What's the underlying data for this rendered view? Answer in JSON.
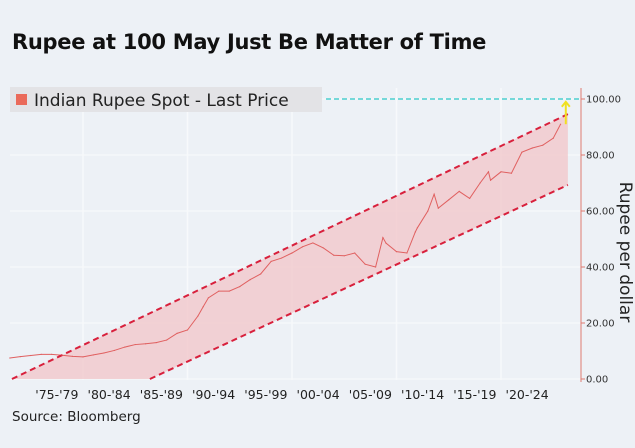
{
  "title": "Rupee at 100 May Just Be Matter of Time",
  "source": "Source: Bloomberg",
  "chart_data": {
    "type": "line",
    "title": "Rupee at 100 May Just Be Matter of Time",
    "legend": {
      "position": "top-left",
      "entries": [
        "Indian Rupee Spot - Last Price"
      ]
    },
    "ylabel": "Rupee per dollar",
    "ylim": [
      0,
      100
    ],
    "yaxis_side": "right",
    "yticks": [
      "0.00",
      "20.00",
      "40.00",
      "60.00",
      "80.00",
      "100.00"
    ],
    "xlim": [
      1973,
      2026.5
    ],
    "xtick_labels": [
      "'75-'79",
      "'80-'84",
      "'85-'89",
      "'90-'94",
      "'95-'99",
      "'00-'04",
      "'05-'09",
      "'10-'14",
      "'15-'19",
      "'20-'24"
    ],
    "grid": true,
    "colors": {
      "series": "#e06060",
      "channel": "#d8203c",
      "band": "#f2c4c8",
      "target": "#2cc7c7",
      "arrow": "#f0e020",
      "legend_marker": "#ea6a5a"
    },
    "series": [
      {
        "name": "Indian Rupee Spot - Last Price",
        "x": [
          1973,
          1974,
          1975,
          1976,
          1977,
          1978,
          1979,
          1980,
          1981,
          1982,
          1983,
          1984,
          1985,
          1986,
          1987,
          1988,
          1989,
          1990,
          1991,
          1991.5,
          1992,
          1993,
          1994,
          1995,
          1996,
          1997,
          1998,
          1999,
          2000,
          2001,
          2002,
          2003,
          2004,
          2005,
          2006,
          2007,
          2008,
          2008.7,
          2009,
          2010,
          2011,
          2011.8,
          2012,
          2013,
          2013.6,
          2014,
          2015,
          2016,
          2017,
          2018,
          2018.8,
          2019,
          2020,
          2021,
          2022,
          2023,
          2024,
          2025,
          2025.7
        ],
        "y": [
          7.5,
          8,
          8.4,
          8.8,
          8.8,
          8.5,
          8.1,
          7.9,
          8.6,
          9.3,
          10.2,
          11.4,
          12.3,
          12.6,
          13,
          13.9,
          16.3,
          17.5,
          22.5,
          25.8,
          29,
          31.4,
          31.4,
          33,
          35.5,
          37.5,
          42,
          43.2,
          45,
          47.2,
          48.6,
          46.8,
          44.2,
          44,
          45,
          41,
          40,
          50.5,
          48.5,
          45.5,
          45,
          52.5,
          54,
          60,
          66,
          61,
          64,
          67,
          64.5,
          70,
          74,
          71,
          74,
          73.5,
          81,
          82.5,
          83.5,
          86,
          91
        ]
      }
    ],
    "channel": {
      "upper": {
        "x": [
          1973.2,
          2026.4
        ],
        "y": [
          0,
          94.6
        ]
      },
      "lower": {
        "x": [
          1986.4,
          2026.4
        ],
        "y": [
          0,
          69.3
        ]
      }
    },
    "target_line": {
      "y": 100
    },
    "arrow": {
      "x": 2026.2,
      "from": 91,
      "to": 99
    }
  }
}
